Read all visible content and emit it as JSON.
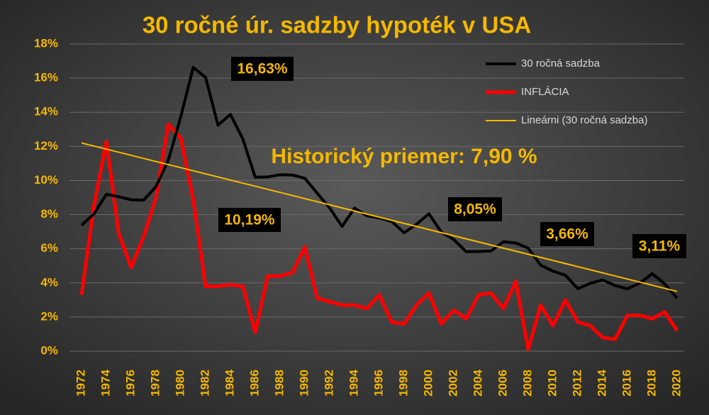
{
  "chart_data": {
    "type": "line",
    "title": "30 ročné úr. sadzby hypoték v USA",
    "x": [
      1972,
      1973,
      1974,
      1975,
      1976,
      1977,
      1978,
      1979,
      1980,
      1981,
      1982,
      1983,
      1984,
      1985,
      1986,
      1987,
      1988,
      1989,
      1990,
      1991,
      1992,
      1993,
      1994,
      1995,
      1996,
      1997,
      1998,
      1999,
      2000,
      2001,
      2002,
      2003,
      2004,
      2005,
      2006,
      2007,
      2008,
      2009,
      2010,
      2011,
      2012,
      2013,
      2014,
      2015,
      2016,
      2017,
      2018,
      2019,
      2020
    ],
    "series": [
      {
        "name": "30 ročná sadzba",
        "color": "#000000",
        "values": [
          7.38,
          8.04,
          9.19,
          9.05,
          8.87,
          8.85,
          9.64,
          11.2,
          13.74,
          16.63,
          16.04,
          13.24,
          13.88,
          12.43,
          10.19,
          10.21,
          10.34,
          10.32,
          10.13,
          9.25,
          8.39,
          7.31,
          8.38,
          7.93,
          7.81,
          7.6,
          6.94,
          7.44,
          8.05,
          6.97,
          6.54,
          5.83,
          5.84,
          5.87,
          6.41,
          6.34,
          6.03,
          5.04,
          4.69,
          4.45,
          3.66,
          3.98,
          4.17,
          3.85,
          3.65,
          3.99,
          4.54,
          3.94,
          3.11
        ]
      },
      {
        "name": "INFLÁCIA",
        "color": "#ff0000",
        "values": [
          3.3,
          8.5,
          12.3,
          6.9,
          4.9,
          6.7,
          9.0,
          13.3,
          12.5,
          8.9,
          3.8,
          3.8,
          3.9,
          3.8,
          1.1,
          4.4,
          4.4,
          4.6,
          6.1,
          3.1,
          2.9,
          2.7,
          2.7,
          2.5,
          3.3,
          1.7,
          1.6,
          2.7,
          3.4,
          1.6,
          2.4,
          1.9,
          3.3,
          3.4,
          2.5,
          4.1,
          0.1,
          2.7,
          1.5,
          3.0,
          1.7,
          1.5,
          0.8,
          0.7,
          2.1,
          2.1,
          1.9,
          2.3,
          1.2
        ]
      }
    ],
    "trendline": {
      "name": "Lineárni (30 ročná sadzba)",
      "color": "#f5b800",
      "x": [
        1972,
        2020
      ],
      "values": [
        12.2,
        3.5
      ]
    },
    "annotations": [
      "16,63%",
      "10,19%",
      "8,05%",
      "3,66%",
      "3,11%"
    ],
    "average_label": "Historický priemer: 7,90 %",
    "xlim": [
      1972,
      2020
    ],
    "xticks": [
      1972,
      1974,
      1976,
      1978,
      1980,
      1982,
      1984,
      1986,
      1988,
      1990,
      1992,
      1994,
      1996,
      1998,
      2000,
      2002,
      2004,
      2006,
      2008,
      2010,
      2012,
      2014,
      2016,
      2018,
      2020
    ],
    "ylim": [
      0,
      18
    ],
    "yticks": [
      {
        "value": 0,
        "label": "0%"
      },
      {
        "value": 2,
        "label": "2%"
      },
      {
        "value": 4,
        "label": "4%"
      },
      {
        "value": 6,
        "label": "6%"
      },
      {
        "value": 8,
        "label": "8%"
      },
      {
        "value": 10,
        "label": "10%"
      },
      {
        "value": 12,
        "label": "12%"
      },
      {
        "value": 14,
        "label": "14%"
      },
      {
        "value": 16,
        "label": "16%"
      },
      {
        "value": 18,
        "label": "18%"
      }
    ],
    "grid": true,
    "legend": "top-right"
  }
}
